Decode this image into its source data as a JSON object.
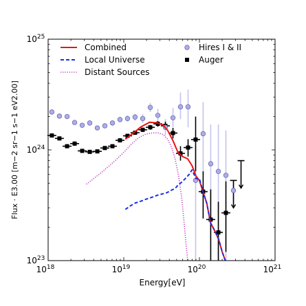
{
  "chart_data": {
    "type": "scatter",
    "x_scale": "log",
    "y_scale": "log",
    "xlim": [
      1e+18,
      1e+21
    ],
    "ylim": [
      1e+23,
      1e+25
    ],
    "xlabel_main": "Energy",
    "xlabel_unit": "[eV]",
    "ylabel": "Flux · E3.00 [m−2 sr−1 s−1 eV2.00]",
    "x_ticks": [
      {
        "value": 1e+18,
        "base": "10",
        "exp": "18"
      },
      {
        "value": 1e+19,
        "base": "10",
        "exp": "19"
      },
      {
        "value": 1e+20,
        "base": "10",
        "exp": "20"
      },
      {
        "value": 1e+21,
        "base": "10",
        "exp": "21"
      }
    ],
    "y_ticks": [
      {
        "value": 1e+23,
        "base": "10",
        "exp": "23"
      },
      {
        "value": 1e+24,
        "base": "10",
        "exp": "24"
      },
      {
        "value": 1e+25,
        "base": "10",
        "exp": "25"
      }
    ],
    "grid": false,
    "legend_placement": "top",
    "legend": [
      {
        "name": "Combined",
        "style": "line",
        "color": "#ee1111"
      },
      {
        "name": "Local Universe",
        "style": "dashed",
        "color": "#1a2ee8"
      },
      {
        "name": "Distant Sources",
        "style": "dotted",
        "color": "#c23fb8"
      },
      {
        "name": "Hires I & II",
        "style": "circle",
        "color": "#aeaee6"
      },
      {
        "name": "Auger",
        "style": "square",
        "color": "#000000"
      }
    ],
    "series": [
      {
        "name": "Combined",
        "kind": "line",
        "color": "#ee1111",
        "points": [
          [
            1.05e+19,
            1.25e+24
          ],
          [
            1.3e+19,
            1.4e+24
          ],
          [
            1.7e+19,
            1.62e+24
          ],
          [
            2.2e+19,
            1.78e+24
          ],
          [
            2.8e+19,
            1.75e+24
          ],
          [
            3.3e+19,
            1.68e+24
          ],
          [
            3.8e+19,
            1.5e+24
          ],
          [
            4.5e+19,
            1.2e+24
          ],
          [
            5.2e+19,
            9.5e+23
          ],
          [
            6e+19,
            8.7e+23
          ],
          [
            7e+19,
            8.3e+23
          ],
          [
            8e+19,
            7.2e+23
          ],
          [
            9e+19,
            5.8e+23
          ],
          [
            1e+20,
            5.3e+23
          ],
          [
            1.1e+20,
            4.3e+23
          ],
          [
            1.25e+20,
            3.3e+23
          ],
          [
            1.4e+20,
            2.2e+23
          ],
          [
            1.6e+20,
            1.85e+23
          ],
          [
            1.8e+20,
            1.55e+23
          ],
          [
            2e+20,
            1.2e+23
          ],
          [
            2.2e+20,
            1e+23
          ]
        ]
      },
      {
        "name": "Local Universe",
        "kind": "dashed",
        "color": "#1a2ee8",
        "points": [
          [
            1.05e+19,
            2.9e+23
          ],
          [
            1.2e+19,
            3.1e+23
          ],
          [
            1.4e+19,
            3.3e+23
          ],
          [
            1.7e+19,
            3.45e+23
          ],
          [
            2e+19,
            3.6e+23
          ],
          [
            2.4e+19,
            3.75e+23
          ],
          [
            2.8e+19,
            3.9e+23
          ],
          [
            3.2e+19,
            4e+23
          ],
          [
            3.7e+19,
            4.1e+23
          ],
          [
            4.2e+19,
            4.3e+23
          ],
          [
            4.8e+19,
            4.5e+23
          ],
          [
            5.2e+19,
            4.8e+23
          ],
          [
            5.8e+19,
            5.1e+23
          ],
          [
            6.5e+19,
            5.5e+23
          ],
          [
            7.3e+19,
            6e+23
          ],
          [
            8e+19,
            6.6e+23
          ],
          [
            9e+19,
            5.5e+23
          ],
          [
            1e+20,
            5.5e+23
          ],
          [
            1.1e+20,
            4.3e+23
          ],
          [
            1.25e+20,
            3.3e+23
          ],
          [
            1.4e+20,
            2.2e+23
          ],
          [
            1.6e+20,
            1.85e+23
          ],
          [
            1.8e+20,
            1.55e+23
          ],
          [
            2e+20,
            1.2e+23
          ],
          [
            2.2e+20,
            1e+23
          ]
        ]
      },
      {
        "name": "Distant Sources",
        "kind": "dotted",
        "color": "#c23fb8",
        "points": [
          [
            3.2e+18,
            4.9e+23
          ],
          [
            4e+18,
            5.5e+23
          ],
          [
            5e+18,
            6.2e+23
          ],
          [
            6.3e+18,
            7.1e+23
          ],
          [
            8e+18,
            8.2e+23
          ],
          [
            1e+19,
            9.5e+23
          ],
          [
            1.25e+19,
            1.12e+24
          ],
          [
            1.55e+19,
            1.28e+24
          ],
          [
            1.9e+19,
            1.38e+24
          ],
          [
            2.3e+19,
            1.42e+24
          ],
          [
            2.8e+19,
            1.43e+24
          ],
          [
            3.3e+19,
            1.38e+24
          ],
          [
            3.8e+19,
            1.25e+24
          ],
          [
            4.3e+19,
            1.05e+24
          ],
          [
            4.8e+19,
            8.2e+23
          ],
          [
            5.3e+19,
            5.8e+23
          ],
          [
            5.8e+19,
            3.8e+23
          ],
          [
            6.2e+19,
            2.4e+23
          ],
          [
            6.6e+19,
            1.5e+23
          ],
          [
            7e+19,
            1e+23
          ]
        ]
      },
      {
        "name": "Hires I & II",
        "kind": "circle",
        "color": "#aeaee6",
        "points": [
          {
            "x": 1.12e+18,
            "y": 2.2e+24,
            "lo": 2.2e+24,
            "hi": 2.2e+24
          },
          {
            "x": 1.41e+18,
            "y": 2.02e+24,
            "lo": 2.02e+24,
            "hi": 2.02e+24
          },
          {
            "x": 1.78e+18,
            "y": 2e+24,
            "lo": 2e+24,
            "hi": 2e+24
          },
          {
            "x": 2.24e+18,
            "y": 1.77e+24,
            "lo": 1.77e+24,
            "hi": 1.77e+24
          },
          {
            "x": 2.82e+18,
            "y": 1.67e+24,
            "lo": 1.67e+24,
            "hi": 1.67e+24
          },
          {
            "x": 3.55e+18,
            "y": 1.75e+24,
            "lo": 1.75e+24,
            "hi": 1.75e+24
          },
          {
            "x": 4.47e+18,
            "y": 1.58e+24,
            "lo": 1.58e+24,
            "hi": 1.58e+24
          },
          {
            "x": 5.62e+18,
            "y": 1.65e+24,
            "lo": 1.6e+24,
            "hi": 1.7e+24
          },
          {
            "x": 7.08e+18,
            "y": 1.75e+24,
            "lo": 1.68e+24,
            "hi": 1.82e+24
          },
          {
            "x": 8.91e+18,
            "y": 1.88e+24,
            "lo": 1.78e+24,
            "hi": 1.98e+24
          },
          {
            "x": 1.12e+19,
            "y": 1.92e+24,
            "lo": 1.8e+24,
            "hi": 2.05e+24
          },
          {
            "x": 1.41e+19,
            "y": 1.98e+24,
            "lo": 1.83e+24,
            "hi": 2.12e+24
          },
          {
            "x": 1.78e+19,
            "y": 1.92e+24,
            "lo": 1.75e+24,
            "hi": 2.1e+24
          },
          {
            "x": 2.24e+19,
            "y": 2.42e+24,
            "lo": 2.2e+24,
            "hi": 2.65e+24
          },
          {
            "x": 2.82e+19,
            "y": 2.05e+24,
            "lo": 1.8e+24,
            "hi": 2.35e+24
          },
          {
            "x": 3.55e+19,
            "y": 1.6e+24,
            "lo": 1.35e+24,
            "hi": 1.9e+24
          },
          {
            "x": 4.47e+19,
            "y": 1.95e+24,
            "lo": 1.6e+24,
            "hi": 2.4e+24
          },
          {
            "x": 5.62e+19,
            "y": 2.45e+24,
            "lo": 1.9e+24,
            "hi": 3.3e+24
          },
          {
            "x": 7.08e+19,
            "y": 2.45e+24,
            "lo": 1.6e+24,
            "hi": 3.5e+24
          },
          {
            "x": 8.91e+19,
            "y": 5.3e+23,
            "lo": 1e+23,
            "hi": 1.1e+24
          },
          {
            "x": 1.12e+20,
            "y": 1.4e+24,
            "lo": 6e+23,
            "hi": 2.7e+24
          },
          {
            "x": 1.41e+20,
            "y": 7.5e+23,
            "lo": 1e+23,
            "hi": 1.7e+24
          },
          {
            "x": 1.78e+20,
            "y": 6.4e+23,
            "lo": 1e+23,
            "hi": 1.7e+24
          },
          {
            "x": 2.24e+20,
            "y": 5.9e+23,
            "lo": 1e+23,
            "hi": 1.5e+24
          },
          {
            "x": 2.82e+20,
            "y": 4.3e+23,
            "lo": 3.3e+23,
            "hi": 5.3e+23
          }
        ]
      },
      {
        "name": "Auger",
        "kind": "square",
        "color": "#000000",
        "points": [
          {
            "x": 1.12e+18,
            "y": 1.35e+24,
            "lo": 1.3e+24,
            "hi": 1.4e+24
          },
          {
            "x": 1.41e+18,
            "y": 1.27e+24,
            "lo": 1.22e+24,
            "hi": 1.32e+24
          },
          {
            "x": 1.78e+18,
            "y": 1.08e+24,
            "lo": 1.04e+24,
            "hi": 1.12e+24
          },
          {
            "x": 2.24e+18,
            "y": 1.14e+24,
            "lo": 1.09e+24,
            "hi": 1.19e+24
          },
          {
            "x": 2.82e+18,
            "y": 9.8e+23,
            "lo": 9.5e+23,
            "hi": 1.01e+24
          },
          {
            "x": 3.55e+18,
            "y": 9.6e+23,
            "lo": 9.3e+23,
            "hi": 9.9e+23
          },
          {
            "x": 4.47e+18,
            "y": 9.7e+23,
            "lo": 9.4e+23,
            "hi": 1e+24
          },
          {
            "x": 5.62e+18,
            "y": 1.04e+24,
            "lo": 1.01e+24,
            "hi": 1.07e+24
          },
          {
            "x": 7.08e+18,
            "y": 1.08e+24,
            "lo": 1.05e+24,
            "hi": 1.11e+24
          },
          {
            "x": 8.91e+18,
            "y": 1.22e+24,
            "lo": 1.18e+24,
            "hi": 1.26e+24
          },
          {
            "x": 1.12e+19,
            "y": 1.34e+24,
            "lo": 1.29e+24,
            "hi": 1.39e+24
          },
          {
            "x": 1.41e+19,
            "y": 1.43e+24,
            "lo": 1.37e+24,
            "hi": 1.49e+24
          },
          {
            "x": 1.78e+19,
            "y": 1.52e+24,
            "lo": 1.45e+24,
            "hi": 1.59e+24
          },
          {
            "x": 2.24e+19,
            "y": 1.6e+24,
            "lo": 1.52e+24,
            "hi": 1.68e+24
          },
          {
            "x": 2.82e+19,
            "y": 1.72e+24,
            "lo": 1.62e+24,
            "hi": 1.82e+24
          },
          {
            "x": 3.55e+19,
            "y": 1.65e+24,
            "lo": 1.52e+24,
            "hi": 1.8e+24
          },
          {
            "x": 4.47e+19,
            "y": 1.42e+24,
            "lo": 1.27e+24,
            "hi": 1.58e+24
          },
          {
            "x": 5.62e+19,
            "y": 9.3e+23,
            "lo": 8e+23,
            "hi": 1.08e+24
          },
          {
            "x": 7.08e+19,
            "y": 1.05e+24,
            "lo": 8.7e+23,
            "hi": 1.25e+24
          },
          {
            "x": 8.91e+19,
            "y": 1.24e+24,
            "lo": 6.4e+23,
            "hi": 2e+24
          },
          {
            "x": 1.12e+20,
            "y": 4.2e+23,
            "lo": 2.4e+23,
            "hi": 6.4e+23
          },
          {
            "x": 1.41e+20,
            "y": 2.35e+23,
            "lo": 1e+23,
            "hi": 4.4e+23
          },
          {
            "x": 1.78e+20,
            "y": 1.8e+23,
            "lo": 1e+23,
            "hi": 3.4e+23
          },
          {
            "x": 2.24e+20,
            "y": 2.7e+23,
            "lo": 1.2e+23,
            "hi": 5.2e+23
          }
        ]
      },
      {
        "name": "Auger upper limits",
        "kind": "upper_limit",
        "color": "#000000",
        "points": [
          {
            "x": 2.82e+20,
            "y": 5.3e+23
          },
          {
            "x": 3.55e+20,
            "y": 8e+23
          }
        ]
      }
    ]
  }
}
